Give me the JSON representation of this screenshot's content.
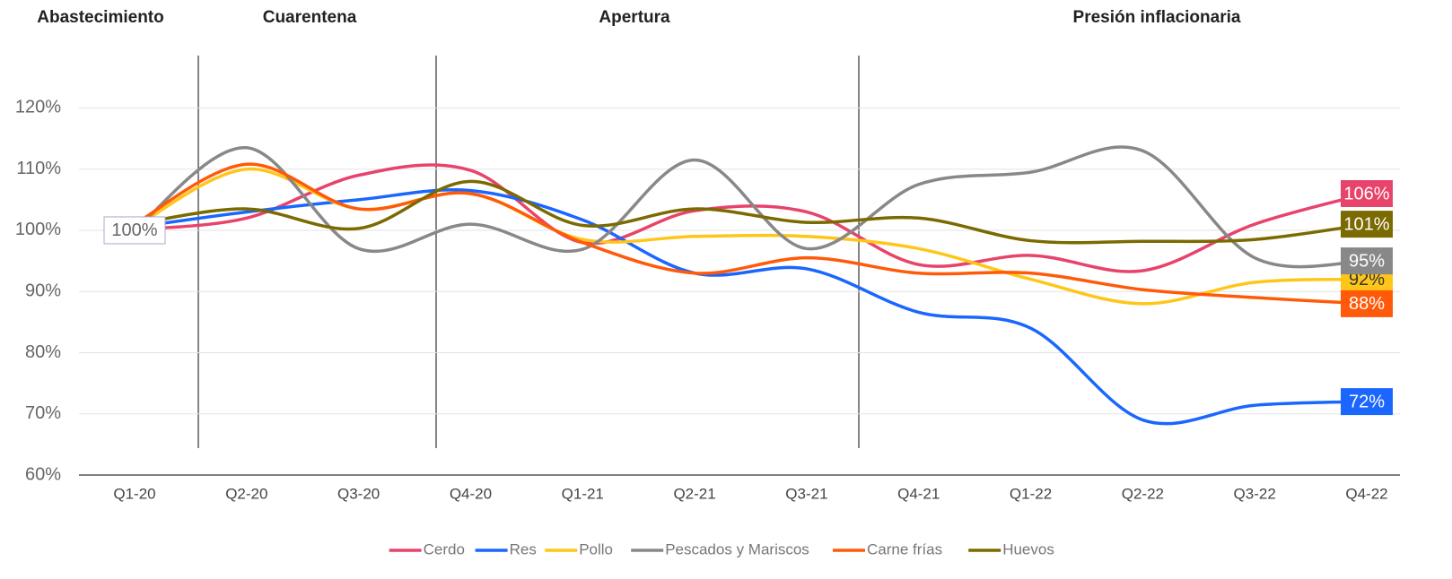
{
  "chart_data": {
    "type": "line",
    "annotations": [
      "Abastecimiento",
      "Cuarentena",
      "Apertura",
      "Presión inflacionaria"
    ],
    "categories": [
      "Q1-20",
      "Q2-20",
      "Q3-20",
      "Q4-20",
      "Q1-21",
      "Q2-21",
      "Q3-21",
      "Q4-21",
      "Q1-22",
      "Q2-22",
      "Q3-22",
      "Q4-22"
    ],
    "series": [
      {
        "name": "Cerdo",
        "color": "#e8436a",
        "values": [
          100.1,
          102,
          109,
          109.8,
          98,
          103.2,
          103,
          94.4,
          95.9,
          93.4,
          101,
          106
        ],
        "value_labels": [
          null,
          null,
          null,
          null,
          null,
          null,
          null,
          null,
          null,
          null,
          null,
          "106%"
        ]
      },
      {
        "name": "Res",
        "color": "#1a66ff",
        "values": [
          100.5,
          103,
          105,
          106.5,
          101.7,
          93,
          93.7,
          86.6,
          84,
          69,
          71.4,
          72
        ],
        "value_labels": [
          null,
          null,
          null,
          null,
          null,
          null,
          null,
          null,
          null,
          null,
          null,
          "72%"
        ]
      },
      {
        "name": "Pollo",
        "color": "#ffc61a",
        "values": [
          100.5,
          110,
          103.5,
          106,
          98.5,
          99,
          99,
          97,
          92,
          88,
          91.5,
          92
        ],
        "value_labels": [
          null,
          null,
          null,
          null,
          null,
          null,
          null,
          null,
          null,
          null,
          null,
          "92%"
        ]
      },
      {
        "name": "Pescados y Mariscos",
        "color": "#888888",
        "values": [
          100,
          113.5,
          97,
          101,
          96.9,
          111.5,
          97,
          107.5,
          109.5,
          113,
          95.5,
          95
        ],
        "value_labels": [
          "100%",
          null,
          null,
          null,
          null,
          null,
          null,
          null,
          null,
          null,
          null,
          "95%"
        ]
      },
      {
        "name": "Carne frías",
        "color": "#ff5a0a",
        "values": [
          101,
          110.8,
          103.5,
          106,
          98,
          93,
          95.5,
          93,
          93,
          90.3,
          89,
          88
        ],
        "value_labels": [
          null,
          null,
          null,
          null,
          null,
          null,
          null,
          null,
          null,
          null,
          null,
          "88%"
        ]
      },
      {
        "name": "Huevos",
        "color": "#7a6a00",
        "values": [
          101,
          103.5,
          100.3,
          108,
          100.8,
          103.5,
          101.3,
          102,
          98.3,
          98.2,
          98.5,
          101
        ],
        "value_labels": [
          null,
          null,
          null,
          null,
          null,
          null,
          null,
          null,
          null,
          null,
          null,
          "101%"
        ]
      }
    ],
    "ylim": [
      60,
      129
    ],
    "yticks": [
      {
        "value": 60,
        "label": "60%"
      },
      {
        "value": 70,
        "label": "70%"
      },
      {
        "value": 80,
        "label": "80%"
      },
      {
        "value": 90,
        "label": "90%"
      },
      {
        "value": 100,
        "label": "100%"
      },
      {
        "value": 110,
        "label": "110%"
      },
      {
        "value": 120,
        "label": "120%"
      }
    ],
    "grid": true,
    "legend": "bottom"
  }
}
